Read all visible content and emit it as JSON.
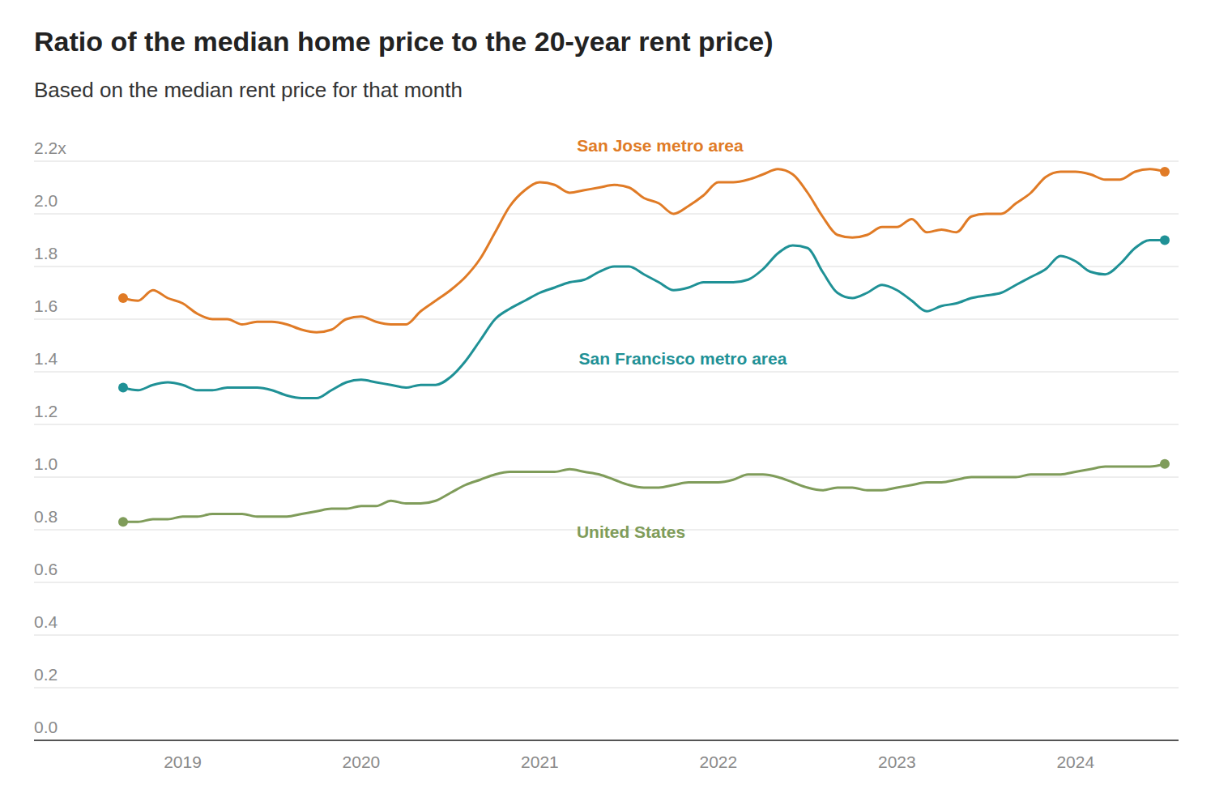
{
  "chart_data": {
    "type": "line",
    "title": "Ratio of the median home price to the 20-year rent price)",
    "subtitle": "Based on the median rent price for that month",
    "categories": [
      null,
      null,
      null,
      null,
      "2019",
      null,
      null,
      null,
      null,
      null,
      null,
      null,
      null,
      null,
      null,
      null,
      "2020",
      null,
      null,
      null,
      null,
      null,
      null,
      null,
      null,
      null,
      null,
      null,
      "2021",
      null,
      null,
      null,
      null,
      null,
      null,
      null,
      null,
      null,
      null,
      null,
      "2022",
      null,
      null,
      null,
      null,
      null,
      null,
      null,
      null,
      null,
      null,
      null,
      "2023",
      null,
      null,
      null,
      null,
      null,
      null,
      null,
      null,
      null,
      null,
      null,
      "2024",
      null,
      null,
      null,
      null,
      null,
      null
    ],
    "series": [
      {
        "name": "San Jose metro area",
        "color": "#e07b26",
        "values": [
          1.68,
          1.67,
          1.71,
          1.68,
          1.66,
          1.62,
          1.6,
          1.6,
          1.58,
          1.59,
          1.59,
          1.58,
          1.56,
          1.55,
          1.56,
          1.6,
          1.61,
          1.59,
          1.58,
          1.58,
          1.63,
          1.67,
          1.71,
          1.76,
          1.83,
          1.93,
          2.03,
          2.09,
          2.12,
          2.11,
          2.08,
          2.09,
          2.1,
          2.11,
          2.1,
          2.06,
          2.04,
          2.0,
          2.03,
          2.07,
          2.12,
          2.12,
          2.13,
          2.15,
          2.17,
          2.15,
          2.08,
          1.99,
          1.92,
          1.91,
          1.92,
          1.95,
          1.95,
          1.98,
          1.93,
          1.94,
          1.93,
          1.99,
          2.0,
          2.0,
          2.04,
          2.08,
          2.14,
          2.16,
          2.16,
          2.15,
          2.13,
          2.13,
          2.16,
          2.17,
          2.16
        ]
      },
      {
        "name": "San Francisco metro area",
        "color": "#1f9196",
        "values": [
          1.34,
          1.33,
          1.35,
          1.36,
          1.35,
          1.33,
          1.33,
          1.34,
          1.34,
          1.34,
          1.33,
          1.31,
          1.3,
          1.3,
          1.33,
          1.36,
          1.37,
          1.36,
          1.35,
          1.34,
          1.35,
          1.35,
          1.38,
          1.44,
          1.52,
          1.6,
          1.64,
          1.67,
          1.7,
          1.72,
          1.74,
          1.75,
          1.78,
          1.8,
          1.8,
          1.77,
          1.74,
          1.71,
          1.72,
          1.74,
          1.74,
          1.74,
          1.75,
          1.79,
          1.85,
          1.88,
          1.87,
          1.78,
          1.7,
          1.68,
          1.7,
          1.73,
          1.71,
          1.67,
          1.63,
          1.65,
          1.66,
          1.68,
          1.69,
          1.7,
          1.73,
          1.76,
          1.79,
          1.84,
          1.82,
          1.78,
          1.77,
          1.81,
          1.87,
          1.9,
          1.9
        ]
      },
      {
        "name": "United States",
        "color": "#7f9c5a",
        "values": [
          0.83,
          0.83,
          0.84,
          0.84,
          0.85,
          0.85,
          0.86,
          0.86,
          0.86,
          0.85,
          0.85,
          0.85,
          0.86,
          0.87,
          0.88,
          0.88,
          0.89,
          0.89,
          0.91,
          0.9,
          0.9,
          0.91,
          0.94,
          0.97,
          0.99,
          1.01,
          1.02,
          1.02,
          1.02,
          1.02,
          1.03,
          1.02,
          1.01,
          0.99,
          0.97,
          0.96,
          0.96,
          0.97,
          0.98,
          0.98,
          0.98,
          0.99,
          1.01,
          1.01,
          1.0,
          0.98,
          0.96,
          0.95,
          0.96,
          0.96,
          0.95,
          0.95,
          0.96,
          0.97,
          0.98,
          0.98,
          0.99,
          1.0,
          1.0,
          1.0,
          1.0,
          1.01,
          1.01,
          1.01,
          1.02,
          1.03,
          1.04,
          1.04,
          1.04,
          1.04,
          1.05
        ]
      }
    ],
    "ylim": [
      0,
      2.2
    ],
    "yticks": [
      {
        "value": 0,
        "label": "0.0"
      },
      0.2,
      0.4,
      0.6,
      0.8,
      {
        "value": 1,
        "label": "1.0"
      },
      1.2,
      1.4,
      1.6,
      1.8,
      {
        "value": 2,
        "label": "2.0"
      },
      {
        "value": 2.2,
        "label": "2.2x"
      }
    ],
    "grid": true
  }
}
